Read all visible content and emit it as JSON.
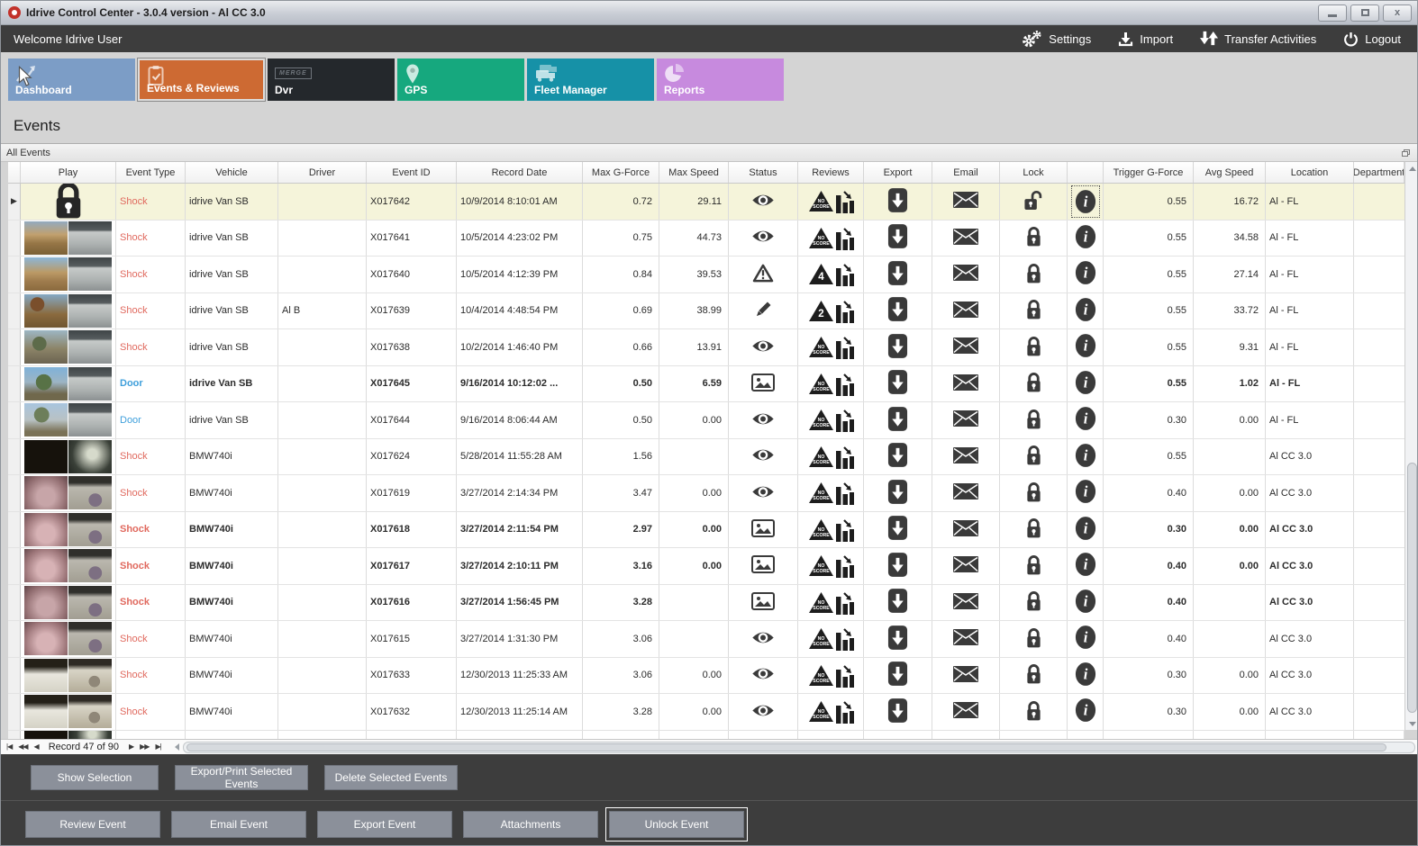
{
  "titlebar": {
    "title": "Idrive Control Center - 3.0.4 version - Al CC 3.0",
    "logo_icon": "idrive-logo-ring",
    "window_buttons": [
      "minimize",
      "maximize",
      "close"
    ]
  },
  "menubar": {
    "welcome": "Welcome Idrive User",
    "items": [
      {
        "label": "Settings",
        "icon": "gears-icon"
      },
      {
        "label": "Import",
        "icon": "import-icon"
      },
      {
        "label": "Transfer Activities",
        "icon": "transfer-icon"
      },
      {
        "label": "Logout",
        "icon": "power-icon"
      }
    ]
  },
  "tabs": [
    {
      "label": "Dashboard",
      "icon": "line-chart-icon",
      "color": "#7c9dc6",
      "selected": false,
      "has_cursor": true
    },
    {
      "label": "Events & Reviews",
      "icon": "clipboard-check-icon",
      "color": "#cd6a33",
      "selected": true,
      "has_cursor": false
    },
    {
      "label": "Dvr",
      "icon": "merge-logo-icon",
      "color": "#24282c",
      "selected": false,
      "has_cursor": false
    },
    {
      "label": "GPS",
      "icon": "map-pin-icon",
      "color": "#16a87e",
      "selected": false,
      "has_cursor": false
    },
    {
      "label": "Fleet Manager",
      "icon": "trucks-icon",
      "color": "#1691a7",
      "selected": false,
      "has_cursor": false
    },
    {
      "label": "Reports",
      "icon": "pie-chart-icon",
      "color": "#c78ade",
      "selected": false,
      "has_cursor": false
    }
  ],
  "page": {
    "title": "Events"
  },
  "panel": {
    "title": "All Events",
    "corner_icon": "restore-window-icon"
  },
  "grid": {
    "columns": [
      "Play",
      "Event Type",
      "Vehicle",
      "Driver",
      "Event ID",
      "Record Date",
      "Max G-Force",
      "Max Speed",
      "Status",
      "Reviews",
      "Export",
      "Email",
      "Lock",
      "",
      "Trigger G-Force",
      "Avg Speed",
      "Location",
      "Department"
    ],
    "rows": [
      {
        "selected": true,
        "bold": false,
        "play": "lock-icon",
        "thumb": "",
        "event_type": "Shock",
        "vehicle": "idrive Van SB",
        "driver": "",
        "event_id": "X017642",
        "record_date": "10/9/2014 8:10:01 AM",
        "max_g_force": "0.72",
        "max_speed": "29.11",
        "status_icon": "eye-icon",
        "review_badge": "NO SCORE",
        "lock_icon": "unlocked",
        "info_focused": true,
        "trigger_g_force": "0.55",
        "avg_speed": "16.72",
        "location": "Al - FL",
        "department": ""
      },
      {
        "selected": false,
        "bold": false,
        "play": "thumbnail",
        "thumb": "van-road-1",
        "event_type": "Shock",
        "vehicle": "idrive Van SB",
        "driver": "",
        "event_id": "X017641",
        "record_date": "10/5/2014 4:23:02 PM",
        "max_g_force": "0.75",
        "max_speed": "44.73",
        "status_icon": "eye-icon",
        "review_badge": "NO SCORE",
        "lock_icon": "locked",
        "info_focused": false,
        "trigger_g_force": "0.55",
        "avg_speed": "34.58",
        "location": "Al - FL",
        "department": ""
      },
      {
        "selected": false,
        "bold": false,
        "play": "thumbnail",
        "thumb": "van-road-2",
        "event_type": "Shock",
        "vehicle": "idrive Van SB",
        "driver": "",
        "event_id": "X017640",
        "record_date": "10/5/2014 4:12:39 PM",
        "max_g_force": "0.84",
        "max_speed": "39.53",
        "status_icon": "warning-icon",
        "review_badge": "4",
        "lock_icon": "locked",
        "info_focused": false,
        "trigger_g_force": "0.55",
        "avg_speed": "27.14",
        "location": "Al - FL",
        "department": ""
      },
      {
        "selected": false,
        "bold": false,
        "play": "thumbnail",
        "thumb": "van-road-3",
        "event_type": "Shock",
        "vehicle": "idrive Van SB",
        "driver": "Al B",
        "event_id": "X017639",
        "record_date": "10/4/2014 4:48:54 PM",
        "max_g_force": "0.69",
        "max_speed": "38.99",
        "status_icon": "pencil-icon",
        "review_badge": "2",
        "lock_icon": "locked",
        "info_focused": false,
        "trigger_g_force": "0.55",
        "avg_speed": "33.72",
        "location": "Al - FL",
        "department": ""
      },
      {
        "selected": false,
        "bold": false,
        "play": "thumbnail",
        "thumb": "van-road-4",
        "event_type": "Shock",
        "vehicle": "idrive Van SB",
        "driver": "",
        "event_id": "X017638",
        "record_date": "10/2/2014 1:46:40 PM",
        "max_g_force": "0.66",
        "max_speed": "13.91",
        "status_icon": "eye-icon",
        "review_badge": "NO SCORE",
        "lock_icon": "locked",
        "info_focused": false,
        "trigger_g_force": "0.55",
        "avg_speed": "9.31",
        "location": "Al - FL",
        "department": ""
      },
      {
        "selected": false,
        "bold": true,
        "play": "thumbnail",
        "thumb": "van-trees-1",
        "event_type": "Door",
        "vehicle": "idrive Van SB",
        "driver": "",
        "event_id": "X017645",
        "record_date": "9/16/2014 10:12:02 ...",
        "max_g_force": "0.50",
        "max_speed": "6.59",
        "status_icon": "image-icon",
        "review_badge": "NO SCORE",
        "lock_icon": "locked",
        "info_focused": false,
        "trigger_g_force": "0.55",
        "avg_speed": "1.02",
        "location": "Al - FL",
        "department": ""
      },
      {
        "selected": false,
        "bold": false,
        "play": "thumbnail",
        "thumb": "van-trees-2",
        "event_type": "Door",
        "vehicle": "idrive Van SB",
        "driver": "",
        "event_id": "X017644",
        "record_date": "9/16/2014 8:06:44 AM",
        "max_g_force": "0.50",
        "max_speed": "0.00",
        "status_icon": "eye-icon",
        "review_badge": "NO SCORE",
        "lock_icon": "locked",
        "info_focused": false,
        "trigger_g_force": "0.30",
        "avg_speed": "0.00",
        "location": "Al - FL",
        "department": ""
      },
      {
        "selected": false,
        "bold": false,
        "play": "thumbnail",
        "thumb": "dark-room",
        "event_type": "Shock",
        "vehicle": "BMW740i",
        "driver": "",
        "event_id": "X017624",
        "record_date": "5/28/2014 11:55:28 AM",
        "max_g_force": "1.56",
        "max_speed": "",
        "status_icon": "eye-icon",
        "review_badge": "NO SCORE",
        "lock_icon": "locked",
        "info_focused": false,
        "trigger_g_force": "0.55",
        "avg_speed": "",
        "location": "Al CC 3.0",
        "department": ""
      },
      {
        "selected": false,
        "bold": false,
        "play": "thumbnail",
        "thumb": "pink-room-1",
        "event_type": "Shock",
        "vehicle": "BMW740i",
        "driver": "",
        "event_id": "X017619",
        "record_date": "3/27/2014 2:14:34 PM",
        "max_g_force": "3.47",
        "max_speed": "0.00",
        "status_icon": "eye-icon",
        "review_badge": "NO SCORE",
        "lock_icon": "locked",
        "info_focused": false,
        "trigger_g_force": "0.40",
        "avg_speed": "0.00",
        "location": "Al CC 3.0",
        "department": ""
      },
      {
        "selected": false,
        "bold": true,
        "play": "thumbnail",
        "thumb": "pink-room-2",
        "event_type": "Shock",
        "vehicle": "BMW740i",
        "driver": "",
        "event_id": "X017618",
        "record_date": "3/27/2014 2:11:54 PM",
        "max_g_force": "2.97",
        "max_speed": "0.00",
        "status_icon": "image-icon",
        "review_badge": "NO SCORE",
        "lock_icon": "locked",
        "info_focused": false,
        "trigger_g_force": "0.30",
        "avg_speed": "0.00",
        "location": "Al CC 3.0",
        "department": ""
      },
      {
        "selected": false,
        "bold": true,
        "play": "thumbnail",
        "thumb": "pink-room-2",
        "event_type": "Shock",
        "vehicle": "BMW740i",
        "driver": "",
        "event_id": "X017617",
        "record_date": "3/27/2014 2:10:11 PM",
        "max_g_force": "3.16",
        "max_speed": "0.00",
        "status_icon": "image-icon",
        "review_badge": "NO SCORE",
        "lock_icon": "locked",
        "info_focused": false,
        "trigger_g_force": "0.40",
        "avg_speed": "0.00",
        "location": "Al CC 3.0",
        "department": ""
      },
      {
        "selected": false,
        "bold": true,
        "play": "thumbnail",
        "thumb": "pink-room-1",
        "event_type": "Shock",
        "vehicle": "BMW740i",
        "driver": "",
        "event_id": "X017616",
        "record_date": "3/27/2014 1:56:45 PM",
        "max_g_force": "3.28",
        "max_speed": "",
        "status_icon": "image-icon",
        "review_badge": "NO SCORE",
        "lock_icon": "locked",
        "info_focused": false,
        "trigger_g_force": "0.40",
        "avg_speed": "",
        "location": "Al CC 3.0",
        "department": ""
      },
      {
        "selected": false,
        "bold": false,
        "play": "thumbnail",
        "thumb": "pink-room-2",
        "event_type": "Shock",
        "vehicle": "BMW740i",
        "driver": "",
        "event_id": "X017615",
        "record_date": "3/27/2014 1:31:30 PM",
        "max_g_force": "3.06",
        "max_speed": "",
        "status_icon": "eye-icon",
        "review_badge": "NO SCORE",
        "lock_icon": "locked",
        "info_focused": false,
        "trigger_g_force": "0.40",
        "avg_speed": "",
        "location": "Al CC 3.0",
        "department": ""
      },
      {
        "selected": false,
        "bold": false,
        "play": "thumbnail",
        "thumb": "bright-room-1",
        "event_type": "Shock",
        "vehicle": "BMW740i",
        "driver": "",
        "event_id": "X017633",
        "record_date": "12/30/2013 11:25:33 AM",
        "max_g_force": "3.06",
        "max_speed": "0.00",
        "status_icon": "eye-icon",
        "review_badge": "NO SCORE",
        "lock_icon": "locked",
        "info_focused": false,
        "trigger_g_force": "0.30",
        "avg_speed": "0.00",
        "location": "Al CC 3.0",
        "department": ""
      },
      {
        "selected": false,
        "bold": false,
        "play": "thumbnail",
        "thumb": "bright-room-2",
        "event_type": "Shock",
        "vehicle": "BMW740i",
        "driver": "",
        "event_id": "X017632",
        "record_date": "12/30/2013 11:25:14 AM",
        "max_g_force": "3.28",
        "max_speed": "0.00",
        "status_icon": "eye-icon",
        "review_badge": "NO SCORE",
        "lock_icon": "locked",
        "info_focused": false,
        "trigger_g_force": "0.30",
        "avg_speed": "0.00",
        "location": "Al CC 3.0",
        "department": ""
      }
    ]
  },
  "pager": {
    "record_text": "Record 47 of 90",
    "controls_left": [
      {
        "name": "first-record",
        "glyph": "|◀"
      },
      {
        "name": "prev-page",
        "glyph": "◀◀"
      },
      {
        "name": "prev-record",
        "glyph": "◀"
      }
    ],
    "controls_right": [
      {
        "name": "next-record",
        "glyph": "▶"
      },
      {
        "name": "next-page",
        "glyph": "▶▶"
      },
      {
        "name": "last-record",
        "glyph": "▶|"
      }
    ]
  },
  "selection_actions": [
    "Show Selection",
    "Export/Print Selected Events",
    "Delete Selected  Events"
  ],
  "event_actions": [
    "Review Event",
    "Email Event",
    "Export Event",
    "Attachments",
    "Unlock Event"
  ],
  "focused_event_action": "Unlock Event",
  "colors": {
    "shock_text": "#e0695e",
    "door_text": "#3f9fdb",
    "selected_row_bg": "#f5f4da",
    "tab_selected": "#cd6a33",
    "bottom_strip": "#cf7c2c"
  }
}
